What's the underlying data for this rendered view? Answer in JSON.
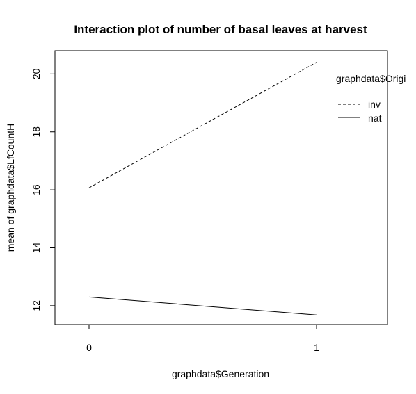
{
  "chart_data": {
    "type": "line",
    "title": "Interaction plot of number of basal leaves at harvest",
    "xlabel": "graphdata$Generation",
    "ylabel": "mean of  graphdata$LfCountH",
    "categories": [
      "0",
      "1"
    ],
    "x_ticks": [
      "0",
      "1"
    ],
    "y_ticks": [
      "12",
      "14",
      "16",
      "18",
      "20"
    ],
    "ylim": [
      11.35,
      20.8
    ],
    "grid": false,
    "legend": {
      "title": "graphdata$Origi",
      "placement": "top-right",
      "entries": [
        "inv",
        "nat"
      ]
    },
    "series": [
      {
        "name": "inv",
        "values": [
          16.07,
          20.4
        ],
        "linestyle": "dashed"
      },
      {
        "name": "nat",
        "values": [
          12.3,
          11.68
        ],
        "linestyle": "solid"
      }
    ]
  }
}
